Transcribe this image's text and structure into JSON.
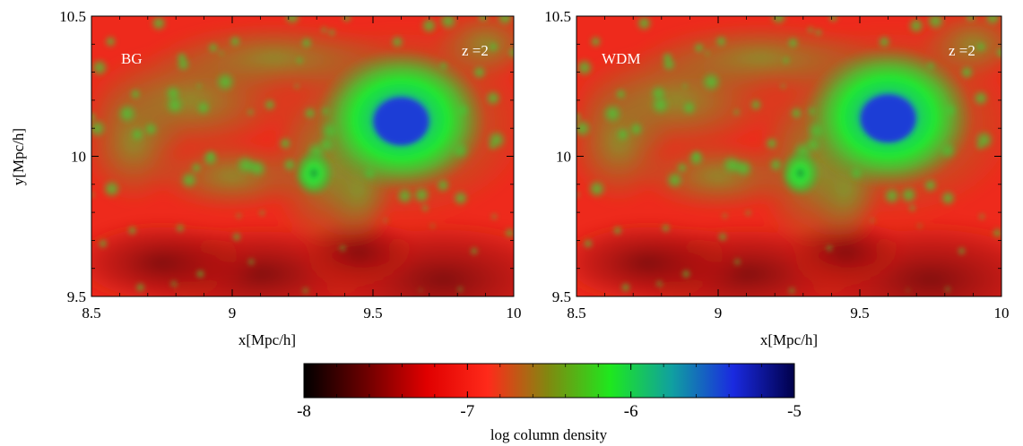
{
  "chart_data": [
    {
      "type": "heatmap",
      "panel_label": "BG",
      "redshift_label": "z =2",
      "xlabel": "x[Mpc/h]",
      "ylabel": "y[Mpc/h]",
      "xlim": [
        8.5,
        10
      ],
      "ylim": [
        9.5,
        10.5
      ],
      "x_ticks": [
        "8.5",
        "9",
        "9.5",
        "10"
      ],
      "y_ticks": [
        "9.5",
        "10",
        "10.5"
      ],
      "features": {
        "main_halo_center": [
          9.6,
          10.13
        ],
        "small_halo_center": [
          9.29,
          9.94
        ],
        "value_range": [
          -7.6,
          -6.1
        ]
      }
    },
    {
      "type": "heatmap",
      "panel_label": "WDM",
      "redshift_label": "z =2",
      "xlabel": "x[Mpc/h]",
      "ylabel": "",
      "xlim": [
        8.5,
        10
      ],
      "ylim": [
        9.5,
        10.5
      ],
      "x_ticks": [
        "8.5",
        "9",
        "9.5",
        "10"
      ],
      "y_ticks": [
        "9.5",
        "10",
        "10.5"
      ],
      "features": {
        "main_halo_center": [
          9.6,
          10.14
        ],
        "small_halo_center": [
          9.29,
          9.94
        ],
        "value_range": [
          -7.6,
          -6.1
        ]
      }
    }
  ],
  "colorbar": {
    "label": "log column density",
    "range": [
      -8,
      -5
    ],
    "ticks": [
      "-8",
      "-7",
      "-6",
      "-5"
    ],
    "colormap": [
      "#000000",
      "#6b0000",
      "#e00000",
      "#ff2a1a",
      "#7f8a10",
      "#1ee81e",
      "#10a0a0",
      "#1a2ae0",
      "#00004a"
    ]
  },
  "colors": {
    "background_field": "#ee2a1c",
    "filament": "#3fce3a",
    "halo_core": "#1c3ed8",
    "void": "#8a0d08"
  }
}
